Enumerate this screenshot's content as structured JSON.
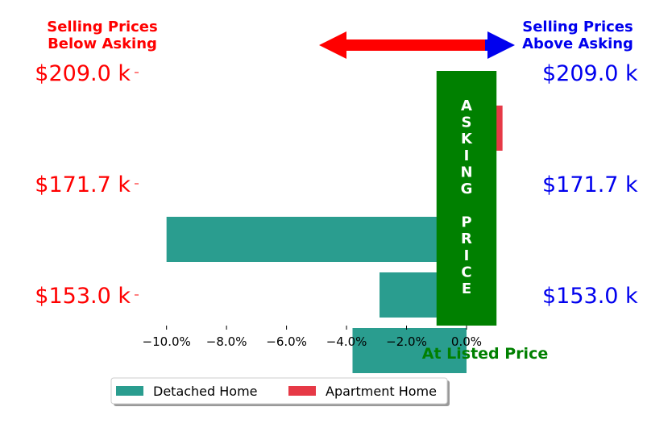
{
  "header": {
    "left_line1": "Selling Prices",
    "left_line2": "Below Asking",
    "right_line1": "Selling Prices",
    "right_line2": "Above Asking"
  },
  "asking_label": "ASKING PRICE",
  "colors": {
    "below": "#ff0000",
    "above": "#0000ee",
    "asking": "#008000",
    "detached": "#2a9d8f",
    "apartment": "#e63946"
  },
  "chart_data": {
    "type": "bar",
    "orientation": "horizontal",
    "categories": [
      "$209.0 k",
      "$171.7 k",
      "$153.0 k"
    ],
    "y_tick_labels_left": [
      "$209.0 k",
      "$171.7 k",
      "$153.0 k"
    ],
    "y_tick_labels_right": [
      "$209.0 k",
      "$171.7 k",
      "$153.0 k"
    ],
    "series": [
      {
        "name": "Detached Home",
        "values": [
          null,
          -10.0,
          -3.8
        ]
      },
      {
        "name": "Apartment Home",
        "values": [
          1.2,
          null,
          null
        ]
      }
    ],
    "extra_bars": [
      {
        "series": "Detached Home",
        "position": 1.5,
        "value": -2.9
      }
    ],
    "xlim": [
      -11.2,
      1.8
    ],
    "x_ticks": [
      -10,
      -8,
      -6,
      -4,
      -2,
      0
    ],
    "x_tick_labels": [
      "−10.0%",
      "−8.0%",
      "−6.0%",
      "−4.0%",
      "−2.0%",
      "0.0%"
    ],
    "xlabel": "At Listed Price",
    "asking_band": [
      -1.0,
      1.0
    ],
    "legend": {
      "placement": "bottom-left",
      "entries": [
        "Detached Home",
        "Apartment Home"
      ]
    }
  }
}
